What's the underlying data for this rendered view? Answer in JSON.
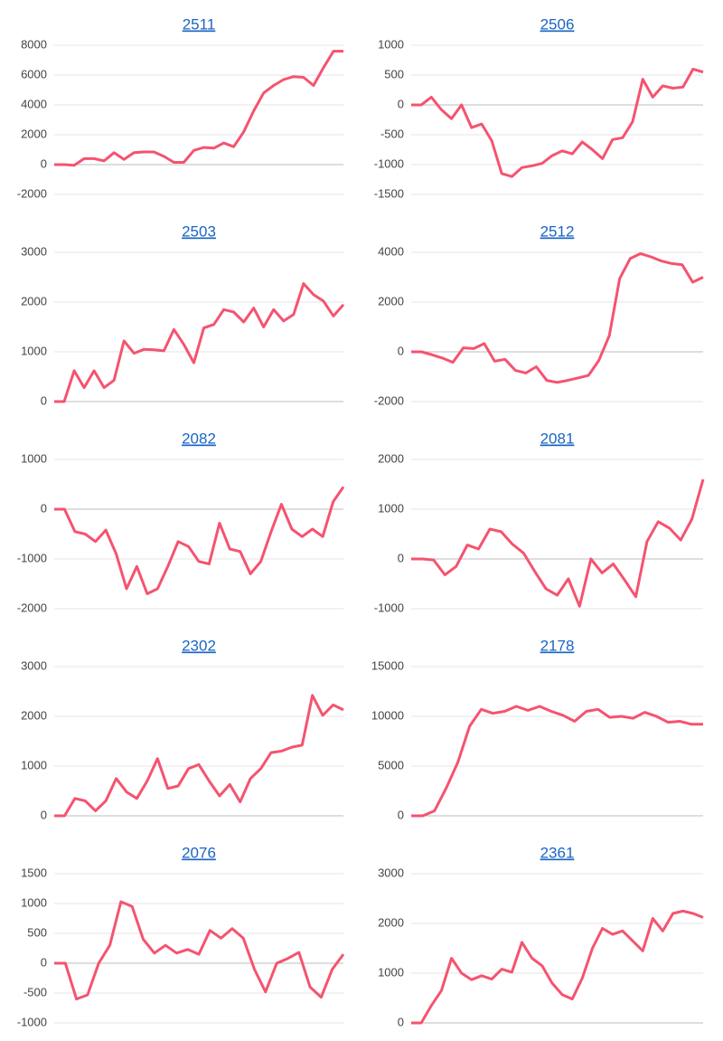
{
  "chart_data": [
    {
      "type": "line",
      "title": "2511",
      "color": "#f5536f",
      "grid": true,
      "ylim": [
        -2000,
        8000
      ],
      "yticks": [
        -2000,
        0,
        2000,
        4000,
        6000,
        8000
      ],
      "values": [
        0,
        0,
        -50,
        400,
        400,
        250,
        800,
        350,
        800,
        850,
        850,
        550,
        150,
        150,
        950,
        1150,
        1100,
        1450,
        1200,
        2200,
        3600,
        4800,
        5300,
        5700,
        5900,
        5850,
        5300,
        6500,
        7600,
        7600
      ]
    },
    {
      "type": "line",
      "title": "2506",
      "color": "#f5536f",
      "grid": true,
      "ylim": [
        -1500,
        1000
      ],
      "yticks": [
        -1500,
        -1000,
        -500,
        0,
        500,
        1000
      ],
      "values": [
        0,
        0,
        130,
        -80,
        -230,
        0,
        -380,
        -320,
        -600,
        -1150,
        -1200,
        -1050,
        -1020,
        -980,
        -850,
        -770,
        -820,
        -620,
        -750,
        -900,
        -580,
        -550,
        -280,
        430,
        130,
        320,
        280,
        300,
        600,
        550
      ]
    },
    {
      "type": "line",
      "title": "2503",
      "color": "#f5536f",
      "grid": true,
      "ylim": [
        0,
        3000
      ],
      "yticks": [
        0,
        1000,
        2000,
        3000
      ],
      "values": [
        0,
        0,
        620,
        280,
        620,
        280,
        430,
        1220,
        970,
        1050,
        1040,
        1020,
        1450,
        1150,
        780,
        1480,
        1550,
        1850,
        1800,
        1600,
        1880,
        1500,
        1850,
        1620,
        1750,
        2370,
        2150,
        2020,
        1720,
        1950
      ]
    },
    {
      "type": "line",
      "title": "2512",
      "color": "#f5536f",
      "grid": true,
      "ylim": [
        -2000,
        4000
      ],
      "yticks": [
        -2000,
        0,
        2000,
        4000
      ],
      "values": [
        0,
        0,
        -120,
        -250,
        -420,
        160,
        130,
        330,
        -380,
        -300,
        -750,
        -850,
        -600,
        -1150,
        -1230,
        -1150,
        -1050,
        -950,
        -350,
        650,
        2950,
        3750,
        3950,
        3820,
        3650,
        3550,
        3500,
        2800,
        3000
      ]
    },
    {
      "type": "line",
      "title": "2082",
      "color": "#f5536f",
      "grid": true,
      "ylim": [
        -2000,
        1000
      ],
      "yticks": [
        -2000,
        -1000,
        0,
        1000
      ],
      "values": [
        0,
        0,
        -450,
        -500,
        -650,
        -420,
        -900,
        -1600,
        -1150,
        -1700,
        -1600,
        -1150,
        -650,
        -750,
        -1050,
        -1100,
        -280,
        -800,
        -850,
        -1300,
        -1050,
        -450,
        100,
        -400,
        -550,
        -400,
        -550,
        150,
        450
      ]
    },
    {
      "type": "line",
      "title": "2081",
      "color": "#f5536f",
      "grid": true,
      "ylim": [
        -1000,
        2000
      ],
      "yticks": [
        -1000,
        0,
        1000,
        2000
      ],
      "values": [
        0,
        0,
        -20,
        -320,
        -150,
        280,
        200,
        600,
        550,
        300,
        120,
        -250,
        -600,
        -730,
        -400,
        -950,
        0,
        -280,
        -100,
        -420,
        -760,
        350,
        750,
        620,
        380,
        800,
        1600
      ]
    },
    {
      "type": "line",
      "title": "2302",
      "color": "#f5536f",
      "grid": true,
      "ylim": [
        0,
        3000
      ],
      "yticks": [
        0,
        1000,
        2000,
        3000
      ],
      "values": [
        0,
        0,
        350,
        300,
        100,
        300,
        750,
        480,
        350,
        700,
        1150,
        550,
        600,
        950,
        1030,
        700,
        400,
        630,
        280,
        750,
        950,
        1270,
        1300,
        1380,
        1420,
        2420,
        2020,
        2230,
        2130
      ]
    },
    {
      "type": "line",
      "title": "2178",
      "color": "#f5536f",
      "grid": true,
      "ylim": [
        0,
        15000
      ],
      "yticks": [
        0,
        5000,
        10000,
        15000
      ],
      "values": [
        0,
        0,
        500,
        2800,
        5400,
        9000,
        10700,
        10300,
        10500,
        11000,
        10600,
        11000,
        10500,
        10100,
        9500,
        10500,
        10700,
        9900,
        10000,
        9800,
        10400,
        10000,
        9400,
        9500,
        9200,
        9200
      ]
    },
    {
      "type": "line",
      "title": "2076",
      "color": "#f5536f",
      "grid": true,
      "ylim": [
        -1000,
        1500
      ],
      "yticks": [
        -1000,
        -500,
        0,
        500,
        1000,
        1500
      ],
      "values": [
        0,
        0,
        -600,
        -530,
        0,
        300,
        1030,
        950,
        400,
        170,
        300,
        170,
        230,
        150,
        550,
        420,
        580,
        420,
        -100,
        -480,
        0,
        80,
        180,
        -400,
        -570,
        -100,
        150
      ]
    },
    {
      "type": "line",
      "title": "2361",
      "color": "#f5536f",
      "grid": true,
      "ylim": [
        0,
        3000
      ],
      "yticks": [
        0,
        1000,
        2000,
        3000
      ],
      "values": [
        0,
        0,
        350,
        650,
        1300,
        1000,
        870,
        950,
        880,
        1080,
        1020,
        1620,
        1300,
        1150,
        800,
        570,
        480,
        900,
        1500,
        1900,
        1780,
        1850,
        1650,
        1450,
        2100,
        1850,
        2200,
        2250,
        2200,
        2120
      ]
    }
  ]
}
